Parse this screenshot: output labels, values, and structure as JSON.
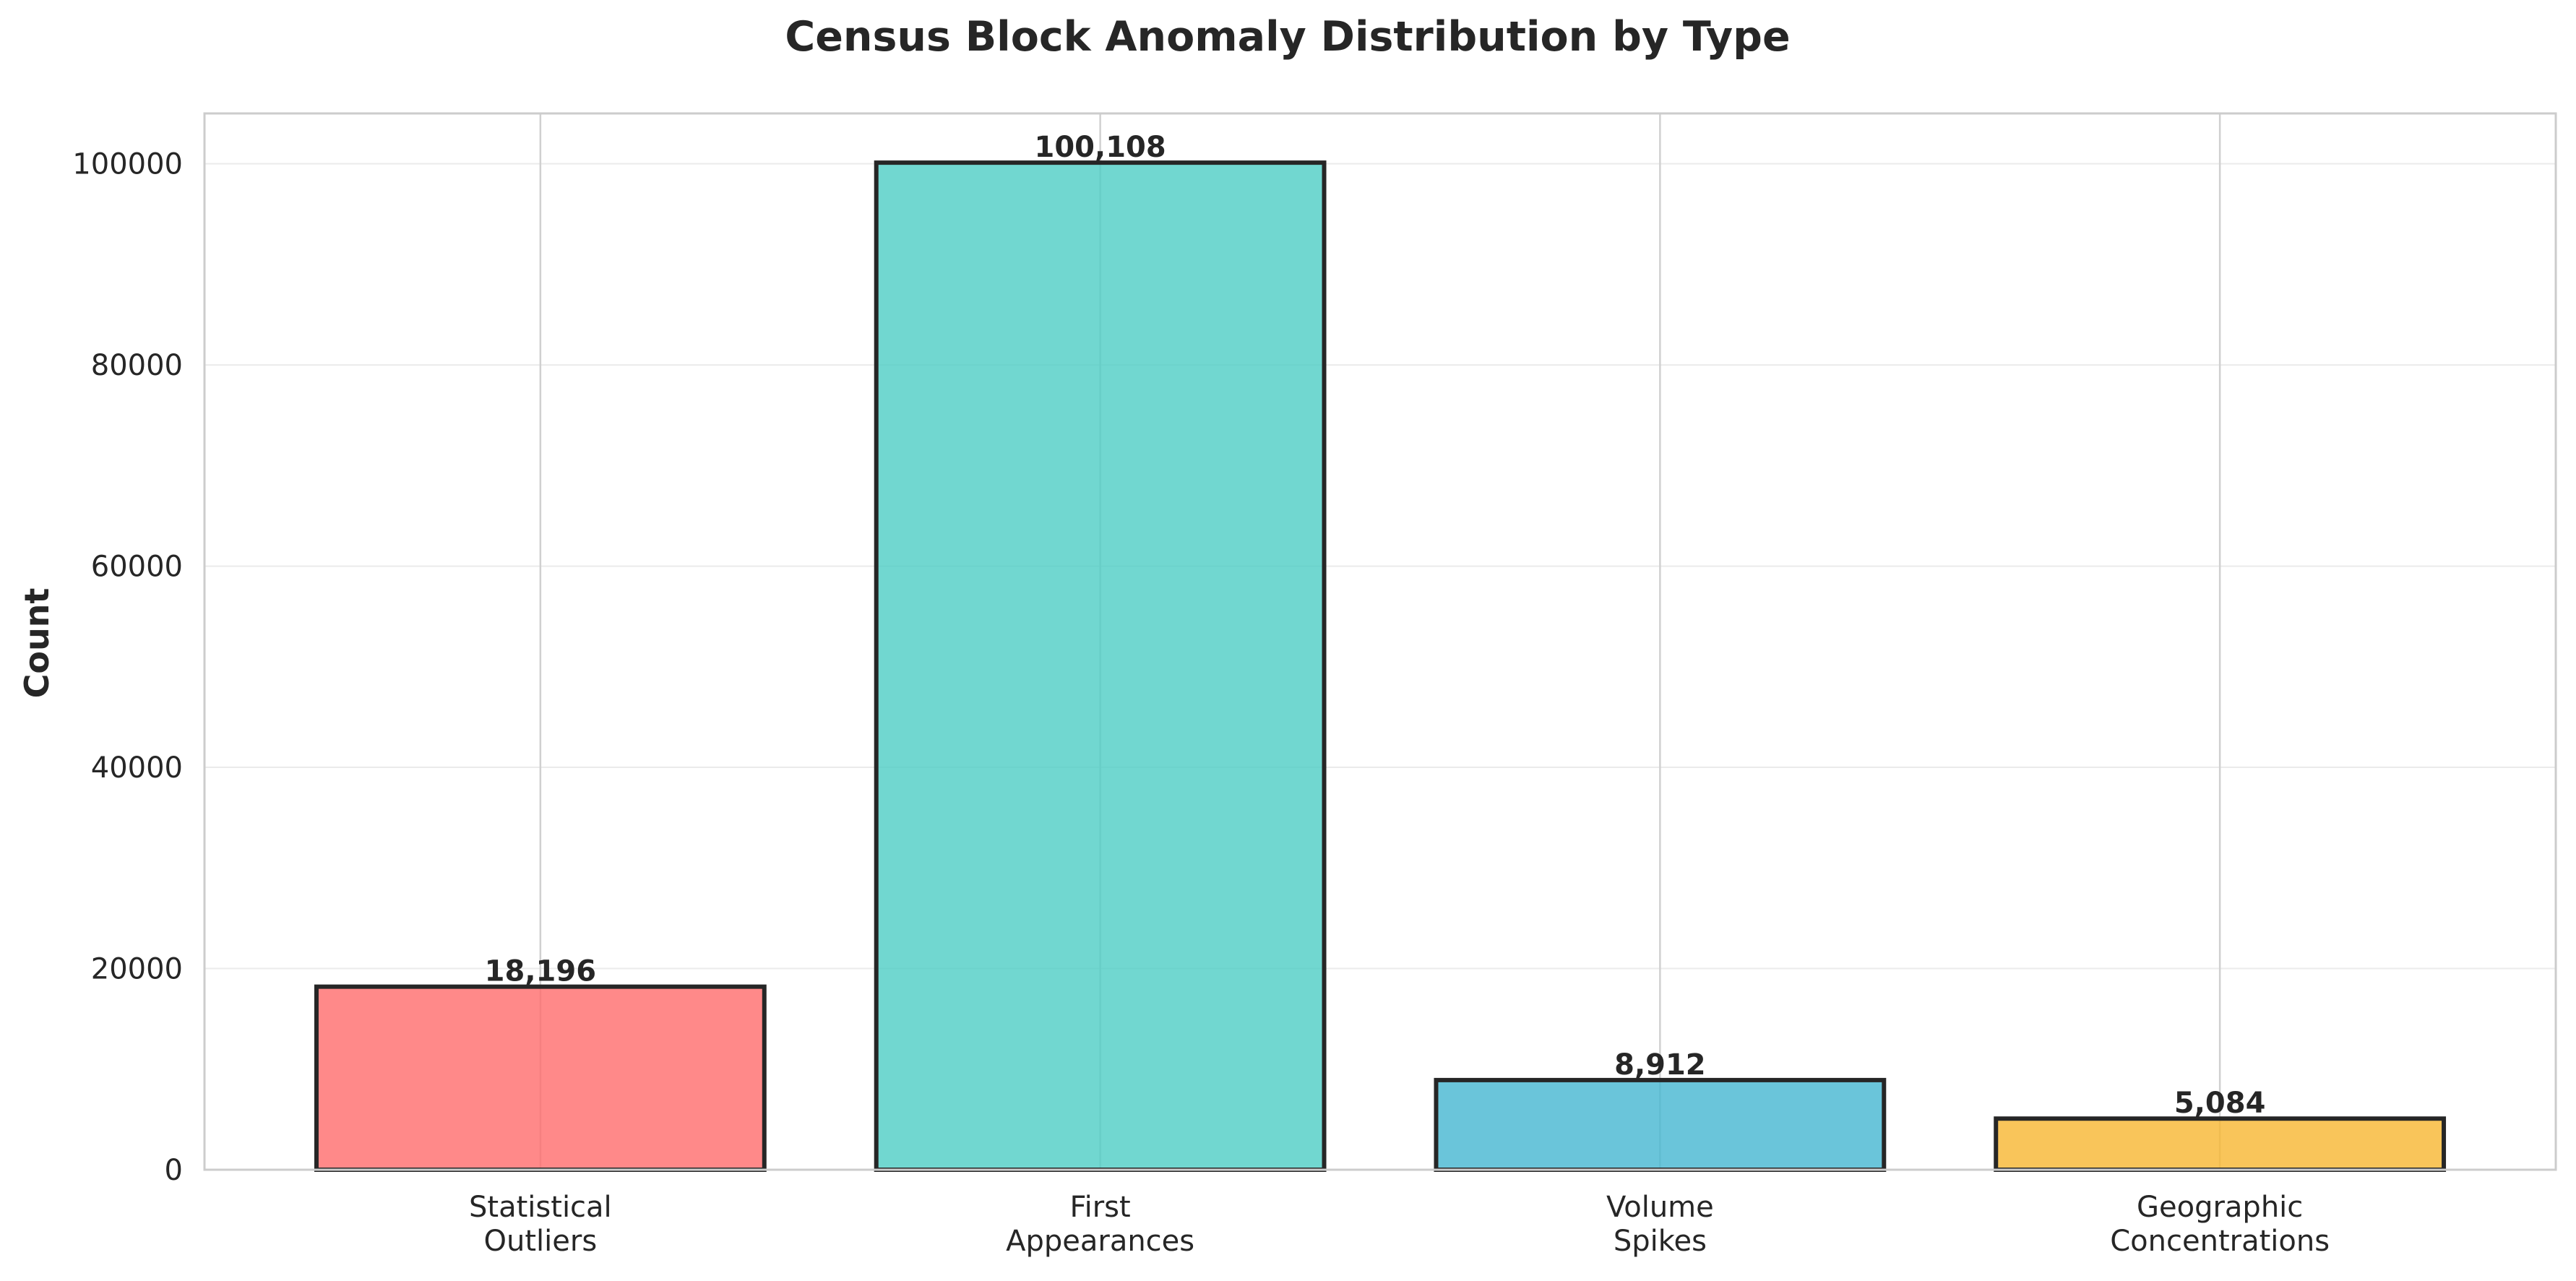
{
  "chart_data": {
    "type": "bar",
    "title": "Census Block Anomaly Distribution by Type",
    "xlabel": "",
    "ylabel": "Count",
    "categories": [
      [
        "Statistical",
        "Outliers"
      ],
      [
        "First",
        "Appearances"
      ],
      [
        "Volume",
        "Spikes"
      ],
      [
        "Geographic",
        "Concentrations"
      ]
    ],
    "values": [
      18196,
      100108,
      8912,
      5084
    ],
    "value_labels": [
      "18,196",
      "100,108",
      "8,912",
      "5,084"
    ],
    "colors": [
      "#FF6B6B",
      "#4ECDC4",
      "#45B7D1",
      "#F7B731"
    ],
    "bar_opacity": 0.8,
    "bar_edge_color": "#262626",
    "ylim": [
      0,
      105000
    ],
    "yticks": [
      0,
      20000,
      40000,
      60000,
      80000,
      100000
    ],
    "ytick_labels": [
      "0",
      "20000",
      "40000",
      "60000",
      "80000",
      "100000"
    ],
    "grid": true,
    "grid_color": "#EBEBEB",
    "vertical_grid_color": "#D0D0D0",
    "axes_edge_color": "#CCCCCC"
  }
}
